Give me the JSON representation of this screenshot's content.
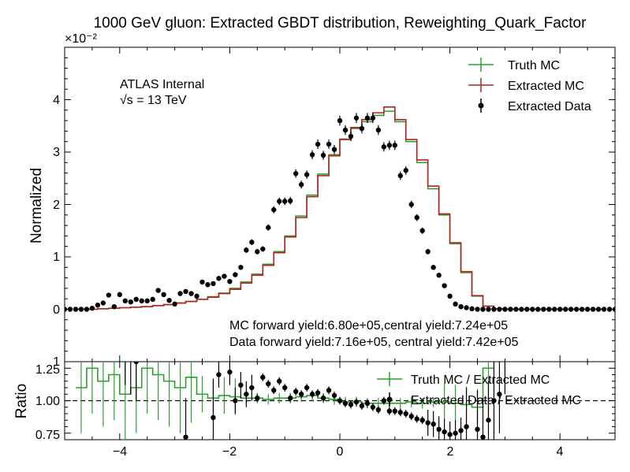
{
  "chart_data": [
    {
      "type": "line",
      "title": "1000 GeV gluon: Extracted GBDT distribution, Reweighting_Quark_Factor",
      "xlabel": "",
      "ylabel": "Normalized",
      "y_multiplier_label": "×10⁻²",
      "xlim": [
        -5,
        5
      ],
      "ylim": [
        -1,
        5
      ],
      "yticks": [
        "0",
        "1",
        "2",
        "3",
        "4"
      ],
      "xticks": [
        "−4",
        "−2",
        "0",
        "2",
        "4"
      ],
      "legend_position": "top-right",
      "annotations": {
        "experiment": "ATLAS Internal",
        "energy": "√s = 13 TeV",
        "mc_yield": "MC forward yield:6.80e+05,central yield:7.24e+05",
        "data_yield": "Data forward yield:7.16e+05, central yield:7.42e+05",
        "cut_tick": "1"
      },
      "bin_edges": [
        -4.8,
        -4.6,
        -4.4,
        -4.2,
        -4.0,
        -3.8,
        -3.6,
        -3.4,
        -3.2,
        -3.0,
        -2.8,
        -2.6,
        -2.4,
        -2.2,
        -2.0,
        -1.8,
        -1.6,
        -1.4,
        -1.2,
        -1.0,
        -0.8,
        -0.6,
        -0.4,
        -0.2,
        0.0,
        0.2,
        0.4,
        0.6,
        0.8,
        1.0,
        1.2,
        1.4,
        1.6,
        1.8,
        2.0,
        2.2,
        2.4,
        2.6,
        2.8,
        3.0,
        3.2,
        3.4,
        3.6,
        3.8,
        4.0,
        4.2,
        4.4,
        4.6,
        4.8
      ],
      "series": [
        {
          "name": "Truth MC",
          "color": "#2ca02c",
          "style": "step",
          "values": [
            0,
            0,
            0.01,
            0.02,
            0.03,
            0.04,
            0.05,
            0.07,
            0.09,
            0.12,
            0.15,
            0.19,
            0.24,
            0.31,
            0.4,
            0.52,
            0.67,
            0.86,
            1.1,
            1.4,
            1.78,
            2.18,
            2.58,
            2.95,
            3.25,
            3.45,
            3.58,
            3.7,
            3.78,
            3.58,
            3.2,
            2.8,
            2.3,
            1.8,
            1.25,
            0.7,
            0.25,
            0.06,
            0.01,
            0,
            0,
            0,
            0,
            0,
            0,
            0,
            0,
            0
          ]
        },
        {
          "name": "Extracted MC",
          "color": "#b22222",
          "style": "step",
          "values": [
            0,
            0,
            0.01,
            0.02,
            0.03,
            0.04,
            0.05,
            0.07,
            0.09,
            0.12,
            0.15,
            0.19,
            0.23,
            0.3,
            0.38,
            0.5,
            0.65,
            0.84,
            1.08,
            1.38,
            1.75,
            2.15,
            2.55,
            2.93,
            3.24,
            3.47,
            3.62,
            3.75,
            3.86,
            3.62,
            3.24,
            2.85,
            2.35,
            1.82,
            1.27,
            0.72,
            0.26,
            0.06,
            0.01,
            0,
            0,
            0,
            0,
            0,
            0,
            0,
            0,
            0
          ]
        },
        {
          "name": "Extracted Data",
          "color": "#000000",
          "style": "points",
          "x": [
            -5.0,
            -4.9,
            -4.8,
            -4.7,
            -4.6,
            -4.5,
            -4.4,
            -4.3,
            -4.2,
            -4.1,
            -4.0,
            -3.9,
            -3.8,
            -3.7,
            -3.6,
            -3.5,
            -3.4,
            -3.3,
            -3.2,
            -3.1,
            -3.0,
            -2.9,
            -2.8,
            -2.7,
            -2.6,
            -2.5,
            -2.4,
            -2.3,
            -2.2,
            -2.1,
            -2.0,
            -1.9,
            -1.8,
            -1.7,
            -1.6,
            -1.5,
            -1.4,
            -1.3,
            -1.2,
            -1.1,
            -1.0,
            -0.9,
            -0.8,
            -0.7,
            -0.6,
            -0.5,
            -0.4,
            -0.3,
            -0.2,
            -0.1,
            0.0,
            0.1,
            0.2,
            0.3,
            0.4,
            0.5,
            0.6,
            0.7,
            0.8,
            0.9,
            1.0,
            1.1,
            1.2,
            1.3,
            1.4,
            1.5,
            1.6,
            1.7,
            1.8,
            1.9,
            2.0,
            2.1,
            2.2,
            2.3,
            2.4,
            2.5,
            2.6,
            2.7,
            2.8,
            2.9,
            3.0,
            3.1,
            3.2,
            3.3,
            3.4,
            3.5,
            3.6,
            3.7,
            3.8,
            3.9,
            4.0,
            4.1,
            4.2,
            4.3,
            4.4,
            4.5,
            4.6,
            4.7,
            4.8,
            4.9,
            5.0
          ],
          "values": [
            0,
            0,
            0,
            0,
            0,
            0.02,
            0.08,
            0.12,
            0.27,
            0.05,
            0.28,
            0.16,
            0.14,
            0.19,
            0.16,
            0.16,
            0.19,
            0.36,
            0.28,
            0.17,
            0.1,
            0.3,
            0.34,
            0.3,
            0.25,
            0.52,
            0.47,
            0.49,
            0.59,
            0.63,
            0.53,
            0.66,
            0.8,
            1.13,
            1.28,
            1.1,
            1.15,
            1.56,
            1.9,
            2.06,
            2.06,
            2.07,
            2.59,
            2.38,
            2.57,
            2.95,
            3.15,
            2.94,
            3.15,
            3.05,
            3.6,
            3.42,
            3.3,
            3.65,
            3.45,
            3.65,
            3.65,
            3.42,
            3.1,
            3.13,
            3.13,
            2.55,
            2.65,
            2.0,
            1.75,
            1.5,
            1.1,
            0.8,
            0.65,
            0.45,
            0.25,
            0.1,
            0.05,
            0.03,
            0.01,
            0,
            0,
            0,
            0,
            0,
            0,
            0,
            0,
            0,
            0,
            0,
            0,
            0,
            0,
            0,
            0,
            0,
            0,
            0,
            0,
            0,
            0,
            0,
            0,
            0,
            0
          ]
        }
      ]
    },
    {
      "type": "line",
      "xlabel": "",
      "ylabel": "Ratio",
      "xlim": [
        -5,
        5
      ],
      "ylim": [
        0.7,
        1.3
      ],
      "yticks": [
        "0.75",
        "1.00",
        "1.25"
      ],
      "xticks": [
        "−4",
        "−2",
        "0",
        "2",
        "4"
      ],
      "reference_line": 1.0,
      "legend_position": "top-right",
      "series": [
        {
          "name": "Truth MC / Extracted MC",
          "color": "#2ca02c",
          "style": "step",
          "x": [
            -4.7,
            -4.5,
            -4.3,
            -4.1,
            -3.9,
            -3.7,
            -3.5,
            -3.3,
            -3.1,
            -2.9,
            -2.7,
            -2.5,
            -2.3,
            -2.1,
            -1.9,
            -1.7,
            -1.5,
            -1.3,
            -1.1,
            -0.9,
            -0.7,
            -0.5,
            -0.3,
            -0.1,
            0.1,
            0.3,
            0.5,
            0.7,
            0.9,
            1.1,
            1.3,
            1.5,
            1.7,
            1.9,
            2.1,
            2.3,
            2.5,
            2.7
          ],
          "values": [
            1.1,
            1.25,
            1.15,
            1.2,
            1.05,
            1.1,
            1.25,
            1.2,
            1.15,
            1.1,
            1.18,
            1.05,
            1.02,
            1.04,
            1.03,
            1.02,
            1.02,
            1.01,
            1.02,
            1.02,
            1.03,
            1.04,
            1.02,
            1.01,
            0.99,
            0.99,
            0.98,
            0.98,
            0.98,
            0.98,
            0.99,
            0.98,
            0.99,
            0.99,
            0.98,
            0.97,
            0.95,
            1.25
          ]
        },
        {
          "name": "Extracted Data / Extracted MC",
          "color": "#000000",
          "style": "points",
          "x": [
            -3.9,
            -3.8,
            -3.7,
            -2.8,
            -2.3,
            -2.2,
            -2.0,
            -1.9,
            -1.8,
            -1.7,
            -1.6,
            -1.5,
            -1.4,
            -1.3,
            -1.2,
            -1.1,
            -1.0,
            -0.9,
            -0.8,
            -0.7,
            -0.6,
            -0.5,
            -0.4,
            -0.3,
            -0.2,
            -0.1,
            0.0,
            0.1,
            0.2,
            0.3,
            0.4,
            0.5,
            0.6,
            0.7,
            0.8,
            0.9,
            1.0,
            1.1,
            1.2,
            1.3,
            1.4,
            1.5,
            1.6,
            1.7,
            1.8,
            1.9,
            2.0,
            2.1,
            2.2,
            2.3,
            2.5,
            2.6,
            2.7,
            2.8,
            2.9,
            3.0
          ],
          "values": [
            1.42,
            1.35,
            1.3,
            0.72,
            0.87,
            1.2,
            1.22,
            1.0,
            1.12,
            1.05,
            1.1,
            1.02,
            1.18,
            1.13,
            1.08,
            1.15,
            1.1,
            1.02,
            1.07,
            1.05,
            1.1,
            1.05,
            1.06,
            1.02,
            1.08,
            1.04,
            1.0,
            0.98,
            0.97,
            0.99,
            0.96,
            0.98,
            0.95,
            0.93,
            1.0,
            0.92,
            0.92,
            0.91,
            0.9,
            0.88,
            0.86,
            0.85,
            0.83,
            0.82,
            0.78,
            0.76,
            0.74,
            0.75,
            0.77,
            0.8,
            0.78,
            0.72,
            0.85,
            1.0,
            1.05,
            1.35
          ]
        }
      ]
    }
  ]
}
